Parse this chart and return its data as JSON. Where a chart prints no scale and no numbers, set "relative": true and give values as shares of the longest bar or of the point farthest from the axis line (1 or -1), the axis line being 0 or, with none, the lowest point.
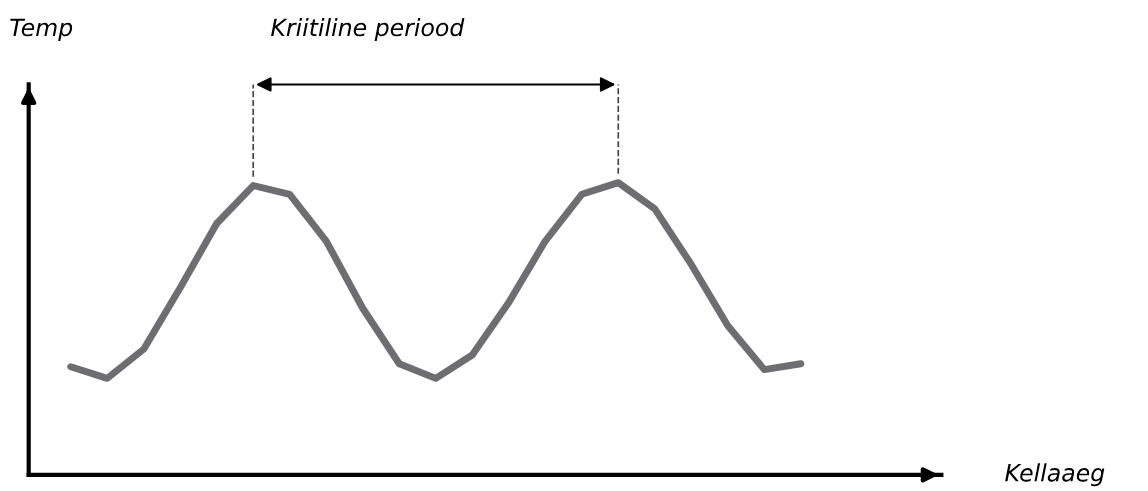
{
  "chart_data": {
    "type": "line",
    "relative": true,
    "annotations": [
      "Temp",
      "Kriitiline periood",
      "Kellaaeg"
    ],
    "categories": [
      null,
      null,
      null,
      null,
      null,
      null,
      null,
      null,
      null,
      null,
      null,
      null,
      null,
      null,
      null,
      null,
      null,
      null,
      null,
      null,
      null
    ],
    "series": [
      {
        "color": "#6d6e71",
        "values": [
          0.37,
          0.33,
          0.43,
          0.64,
          0.86,
          0.99,
          0.96,
          0.8,
          0.57,
          0.38,
          0.33,
          0.41,
          0.59,
          0.8,
          0.96,
          1.0,
          0.91,
          0.72,
          0.51,
          0.36,
          0.38
        ]
      }
    ],
    "marker": "none",
    "line_style": "solid",
    "tick_labels": false
  }
}
